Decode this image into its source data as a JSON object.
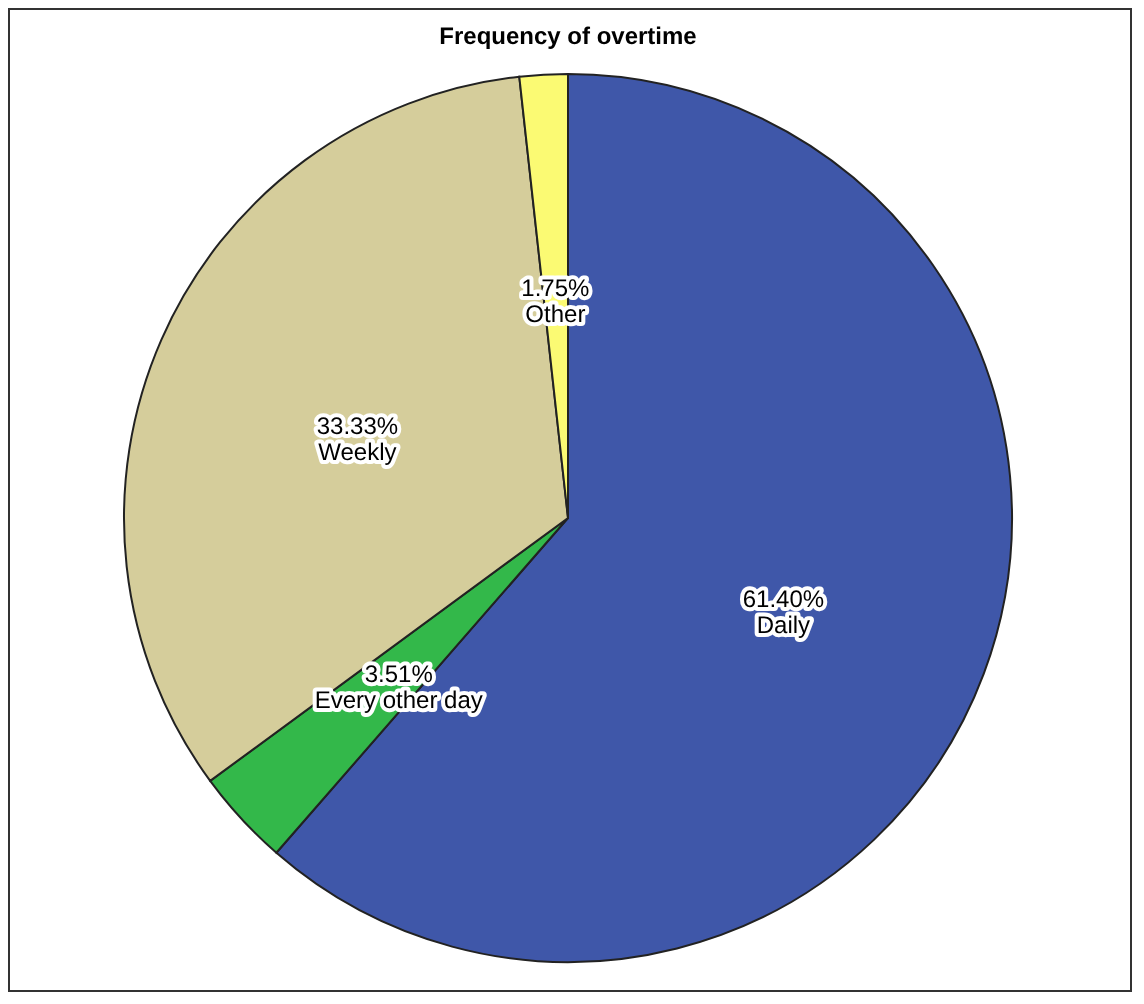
{
  "chart_data": {
    "type": "pie",
    "title": "Frequency of overtime",
    "categories": [
      "Daily",
      "Every other day",
      "Weekly",
      "Other"
    ],
    "values": [
      61.4,
      3.51,
      33.33,
      1.75
    ],
    "colors": [
      "#3f57a9",
      "#33b84a",
      "#d5cd9b",
      "#fbfa73"
    ],
    "value_labels": [
      "61.40%",
      "3.51%",
      "33.33%",
      "1.75%"
    ]
  }
}
